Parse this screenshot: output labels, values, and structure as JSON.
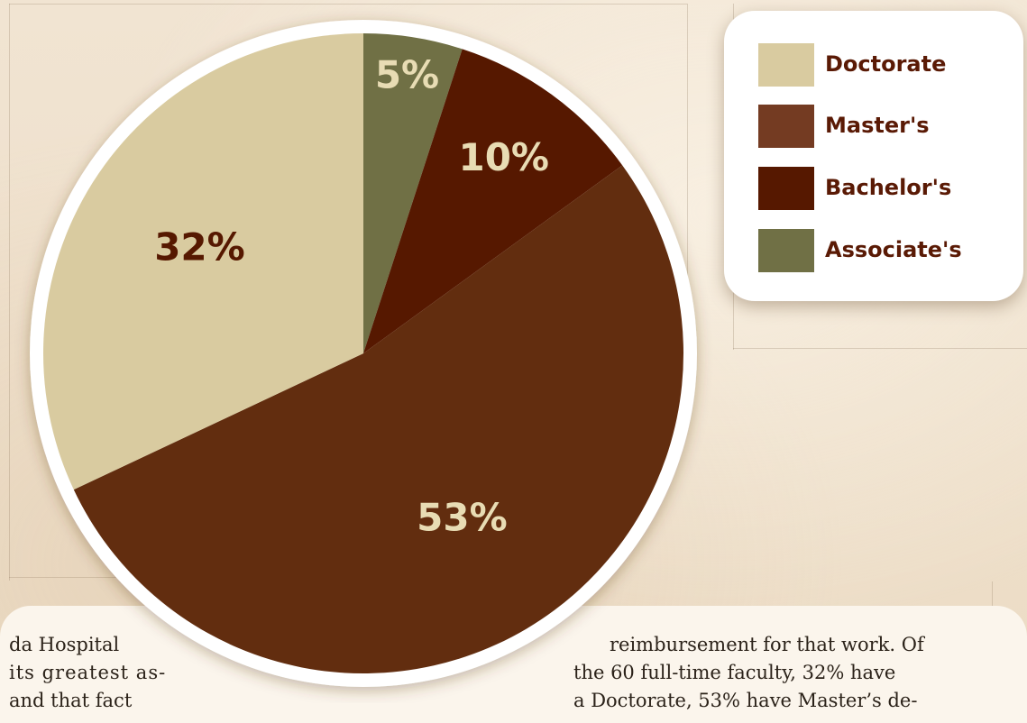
{
  "chart_data": {
    "type": "pie",
    "slices": [
      {
        "label": "Associate's",
        "value": 5,
        "display": "5%",
        "color": "#707045",
        "label_color": "#e8dcb4"
      },
      {
        "label": "Bachelor's",
        "value": 10,
        "display": "10%",
        "color": "#561800",
        "label_color": "#e8dcb4"
      },
      {
        "label": "Master's",
        "value": 53,
        "display": "53%",
        "color": "#622d0f",
        "label_color": "#e8dcb4"
      },
      {
        "label": "Doctorate",
        "value": 32,
        "display": "32%",
        "color": "#d9cba0",
        "label_color": "#561800"
      }
    ],
    "legend": {
      "position": "top-right",
      "items": [
        {
          "label": "Doctorate",
          "color": "#d9cba0"
        },
        {
          "label": "Master's",
          "color": "#743b22"
        },
        {
          "label": "Bachelor's",
          "color": "#561800"
        },
        {
          "label": "Associate's",
          "color": "#707045"
        }
      ]
    }
  },
  "body_text": {
    "left_lines": [
      "da Hospital",
      "its greatest as-",
      "and that fact"
    ],
    "right_lines": [
      "reimbursement for that work. Of",
      "the 60 full-time faculty, 32% have",
      "a Doctorate, 53% have Master’s de-"
    ]
  },
  "colors": {
    "background": "#efe1cc",
    "pie_border": "#ffffff",
    "legend_text": "#5a1a05"
  }
}
